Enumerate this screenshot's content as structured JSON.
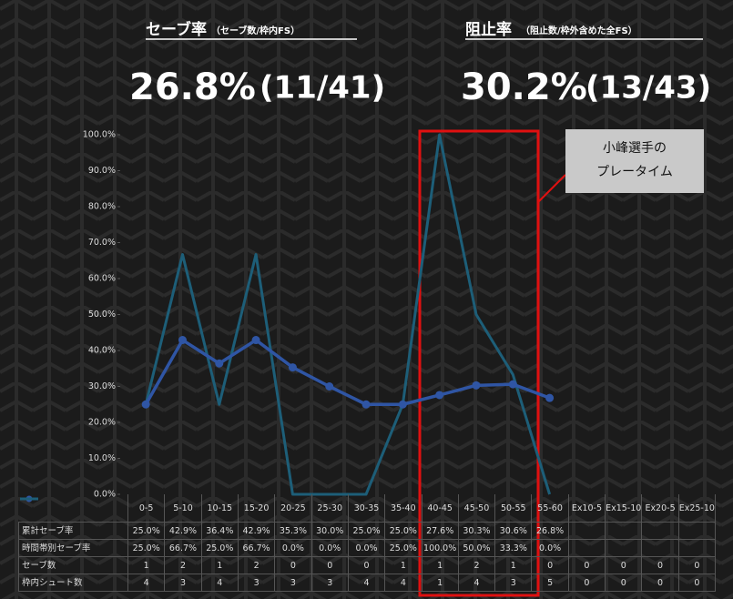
{
  "header": {
    "left": {
      "title": "セーブ率",
      "subtitle": "（セーブ数/枠内FS）",
      "rate": "26.8%",
      "ratio": "(11/41)"
    },
    "right": {
      "title": "阻止率",
      "subtitle": "（阻止数/枠外含めた全FS）",
      "rate": "30.2%",
      "ratio": "(13/43)"
    }
  },
  "chart_data": {
    "type": "line",
    "categories": [
      "0-5",
      "5-10",
      "10-15",
      "15-20",
      "20-25",
      "25-30",
      "30-35",
      "35-40",
      "40-45",
      "45-50",
      "50-55",
      "55-60",
      "Ex10-5",
      "Ex15-10",
      "Ex20-5",
      "Ex25-10"
    ],
    "series": [
      {
        "name": "累計セーブ率",
        "color": "#2f55a4",
        "marker": true,
        "values": [
          25.0,
          42.9,
          36.4,
          42.9,
          35.3,
          30.0,
          25.0,
          25.0,
          27.6,
          30.3,
          30.6,
          26.8,
          null,
          null,
          null,
          null
        ],
        "value_labels": [
          "25.0%",
          "42.9%",
          "36.4%",
          "42.9%",
          "35.3%",
          "30.0%",
          "25.0%",
          "25.0%",
          "27.6%",
          "30.3%",
          "30.6%",
          "26.8%",
          null,
          null,
          null,
          null
        ]
      },
      {
        "name": "時間帯別セーブ率",
        "color": "#1d5e78",
        "marker": false,
        "values": [
          25.0,
          66.7,
          25.0,
          66.7,
          0.0,
          0.0,
          0.0,
          25.0,
          100.0,
          50.0,
          33.3,
          0.0,
          null,
          null,
          null,
          null
        ],
        "value_labels": [
          "25.0%",
          "66.7%",
          "25.0%",
          "66.7%",
          "0.0%",
          "0.0%",
          "0.0%",
          "25.0%",
          "100.0%",
          "50.0%",
          "33.3%",
          "0.0%",
          null,
          null,
          null,
          null
        ]
      }
    ],
    "table_rows": [
      {
        "name": "セーブ数",
        "values": [
          1,
          2,
          1,
          2,
          0,
          0,
          0,
          1,
          1,
          2,
          1,
          0,
          0,
          0,
          0,
          0
        ]
      },
      {
        "name": "枠内シュート数",
        "values": [
          4,
          3,
          4,
          3,
          3,
          3,
          4,
          4,
          1,
          4,
          3,
          5,
          0,
          0,
          0,
          0
        ]
      }
    ],
    "ylim": [
      0,
      100
    ],
    "yticks": [
      {
        "value": 0,
        "label": "0.0%"
      },
      {
        "value": 10,
        "label": "10.0%"
      },
      {
        "value": 20,
        "label": "20.0%"
      },
      {
        "value": 30,
        "label": "30.0%"
      },
      {
        "value": 40,
        "label": "40.0%"
      },
      {
        "value": 50,
        "label": "50.0%"
      },
      {
        "value": 60,
        "label": "60.0%"
      },
      {
        "value": 70,
        "label": "70.0%"
      },
      {
        "value": 80,
        "label": "80.0%"
      },
      {
        "value": 90,
        "label": "90.0%"
      },
      {
        "value": 100,
        "label": "100.0%"
      }
    ],
    "annotation": [
      "小峰選手の",
      "プレータイム"
    ]
  }
}
